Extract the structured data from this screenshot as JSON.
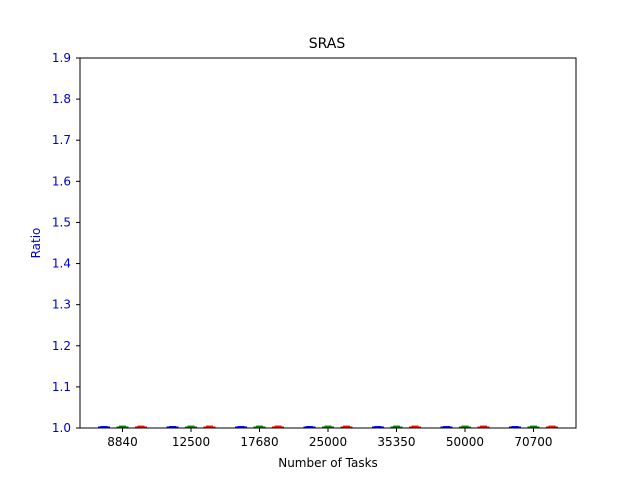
{
  "chart_data": {
    "type": "bar",
    "title": "SRAS",
    "xlabel": "Number of Tasks",
    "ylabel": "Ratio",
    "categories": [
      "8840",
      "12500",
      "17680",
      "25000",
      "35350",
      "50000",
      "70700"
    ],
    "yticks": [
      "1.0",
      "1.1",
      "1.2",
      "1.3",
      "1.4",
      "1.5",
      "1.6",
      "1.7",
      "1.8",
      "1.9"
    ],
    "ylim": [
      1.0,
      1.9
    ],
    "grid": false,
    "legend": false,
    "error_bars": true,
    "series": [
      {
        "color": "#0000ff",
        "values": [
          1.0,
          1.0,
          1.0,
          1.0,
          1.0,
          1.0,
          1.0
        ],
        "errors": [
          0.003,
          0.003,
          0.003,
          0.003,
          0.003,
          0.003,
          0.003
        ]
      },
      {
        "color": "#008000",
        "values": [
          1.0,
          1.0,
          1.0,
          1.0,
          1.0,
          1.0,
          1.0
        ],
        "errors": [
          0.004,
          0.004,
          0.004,
          0.004,
          0.004,
          0.004,
          0.004
        ]
      },
      {
        "color": "#ff0000",
        "values": [
          1.0,
          1.0,
          1.0,
          1.0,
          1.0,
          1.0,
          1.0
        ],
        "errors": [
          0.004,
          0.004,
          0.004,
          0.004,
          0.004,
          0.004,
          0.004
        ]
      }
    ],
    "colors": {
      "ytick": "#0000cc",
      "ylabel": "#0000cc",
      "axis": "#000000"
    }
  }
}
